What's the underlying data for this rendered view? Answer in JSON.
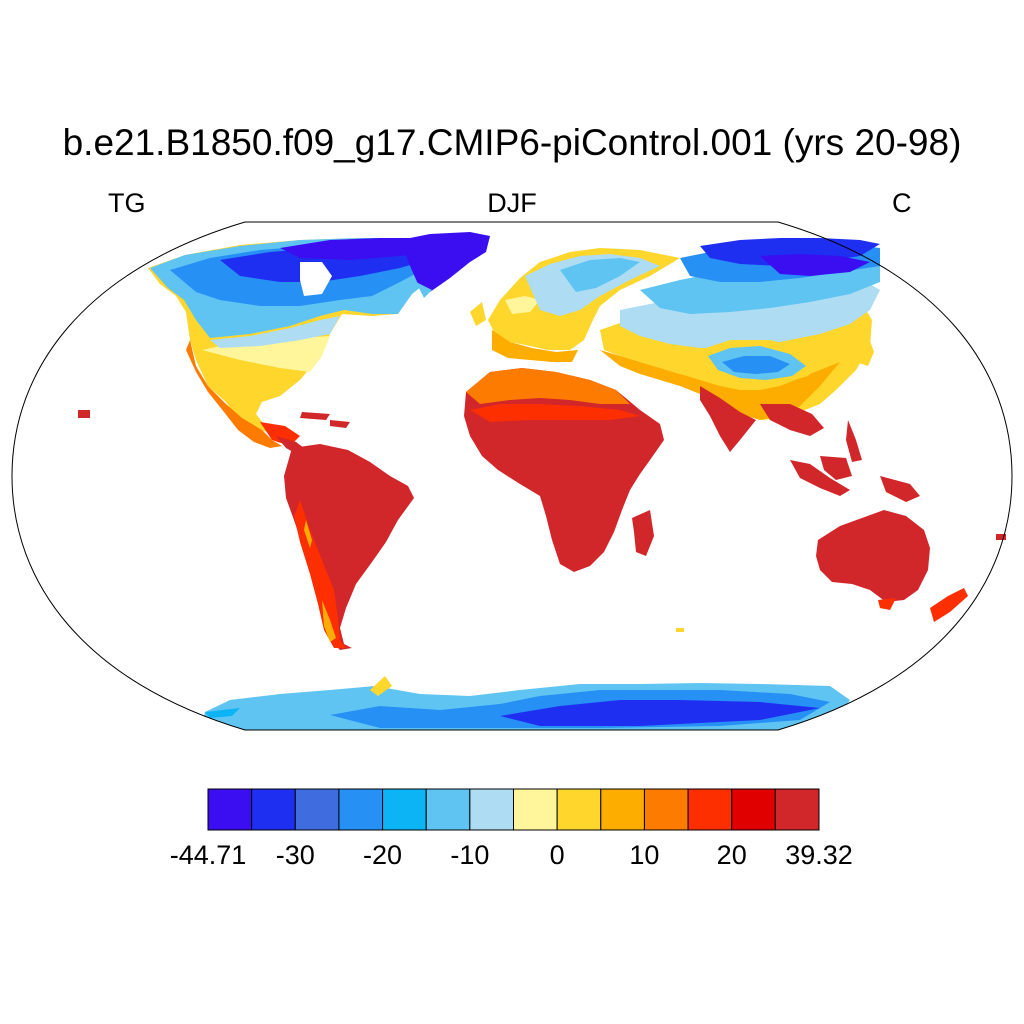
{
  "title": "b.e21.B1850.f09_g17.CMIP6-piControl.001 (yrs 20-98)",
  "subtitle_left": "TG",
  "subtitle_center": "DJF",
  "subtitle_right": "C",
  "colorbar": {
    "colors": [
      "#3b0ef2",
      "#1f2ff2",
      "#3f6de0",
      "#2790f5",
      "#0cb4f5",
      "#5fc4f2",
      "#aedcf2",
      "#fff59a",
      "#fed62c",
      "#fdad00",
      "#fd7c00",
      "#fd2e00",
      "#e10000",
      "#d1262a"
    ],
    "labels": [
      {
        "text": "-44.71",
        "index": 0
      },
      {
        "text": "-30",
        "index": 2
      },
      {
        "text": "-20",
        "index": 4
      },
      {
        "text": "-10",
        "index": 6
      },
      {
        "text": "0",
        "index": 8
      },
      {
        "text": "10",
        "index": 10
      },
      {
        "text": "20",
        "index": 12
      },
      {
        "text": "39.32",
        "index": 14
      }
    ]
  }
}
